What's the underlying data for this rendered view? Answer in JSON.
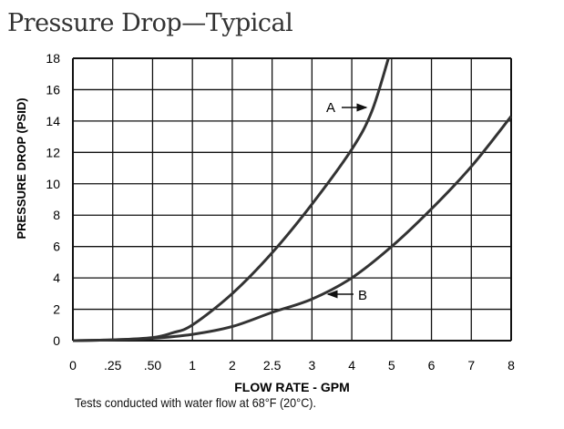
{
  "chart_data": {
    "type": "line",
    "title": "Pressure Drop—Typical",
    "xlabel": "FLOW RATE - GPM",
    "ylabel": "PRESSURE DROP (PSID)",
    "note": "Tests conducted with water flow at 68°F (20°C).",
    "x_ticks": [
      0,
      0.25,
      0.5,
      1,
      2,
      2.5,
      3,
      4,
      5,
      6,
      7,
      8
    ],
    "x_tick_labels": [
      "0",
      ".25",
      ".50",
      "1",
      "2",
      "2.5",
      "3",
      "4",
      "5",
      "6",
      "7",
      "8"
    ],
    "x_scale": "piecewise (evenly spaced ticks)",
    "y_ticks": [
      0,
      2,
      4,
      6,
      8,
      10,
      12,
      14,
      16,
      18
    ],
    "ylim": [
      0,
      18
    ],
    "grid": true,
    "series": [
      {
        "name": "A",
        "x": [
          0,
          0.25,
          0.5,
          0.75,
          1,
          2,
          2.5,
          3,
          4,
          4.5,
          4.92
        ],
        "y": [
          0,
          0.05,
          0.2,
          0.5,
          1.0,
          3.0,
          5.6,
          8.7,
          12.2,
          14.6,
          18
        ]
      },
      {
        "name": "B",
        "x": [
          0,
          0.25,
          0.5,
          1,
          2,
          2.5,
          3,
          4,
          5,
          6,
          7,
          8
        ],
        "y": [
          0,
          0.05,
          0.15,
          0.4,
          0.9,
          1.8,
          2.65,
          4.0,
          6.0,
          8.4,
          11.1,
          14.3
        ]
      }
    ],
    "annotations": [
      {
        "label": "A",
        "series": "A",
        "points_at_x": 4.4
      },
      {
        "label": "B",
        "series": "B",
        "points_at_x": 3.4
      }
    ]
  }
}
